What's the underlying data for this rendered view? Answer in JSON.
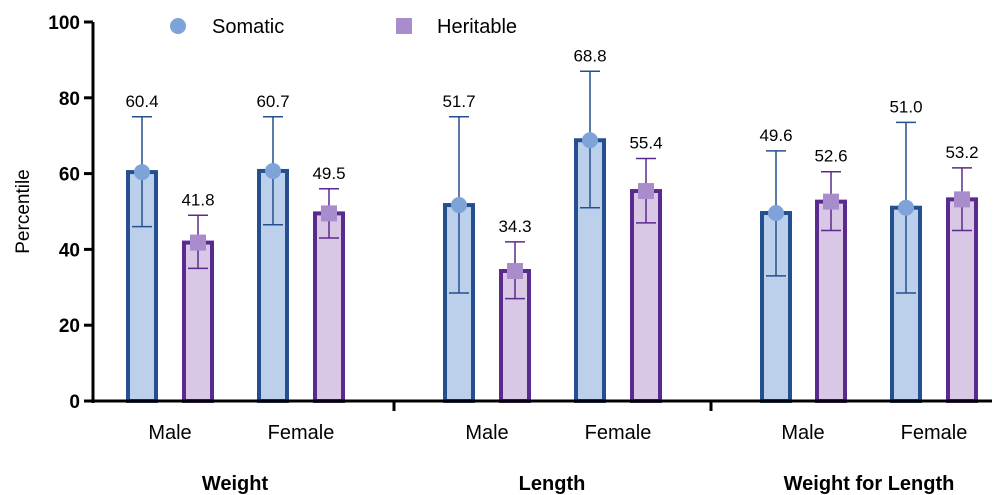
{
  "chart_data": {
    "type": "bar",
    "ylabel": "Percentile",
    "xlabel": "",
    "ylim": [
      0,
      100
    ],
    "yticks": [
      0,
      20,
      40,
      60,
      80,
      100
    ],
    "grid": false,
    "legend_position": "top-left",
    "groups": [
      "Weight",
      "Length",
      "Weight for Length"
    ],
    "categories": [
      "Male",
      "Female",
      "Male",
      "Female",
      "Male",
      "Female"
    ],
    "category_group": [
      0,
      0,
      1,
      1,
      2,
      2
    ],
    "series": [
      {
        "name": "Somatic",
        "marker": "circle",
        "fill_color": "#bcd0ec",
        "edge_color": "#24508f",
        "marker_color": "#7ea3d8",
        "values": [
          60.4,
          60.7,
          51.7,
          68.8,
          49.6,
          51.0
        ],
        "labels": [
          "60.4",
          "60.7",
          "51.7",
          "68.8",
          "49.6",
          "51.0"
        ],
        "error_low": [
          46.0,
          46.5,
          28.5,
          51.0,
          33.0,
          28.5
        ],
        "error_high": [
          75.0,
          75.0,
          75.0,
          87.0,
          66.0,
          73.5
        ]
      },
      {
        "name": "Heritable",
        "marker": "square",
        "fill_color": "#d8c8e6",
        "edge_color": "#5a2a8e",
        "marker_color": "#a88ccb",
        "values": [
          41.8,
          49.5,
          34.3,
          55.4,
          52.6,
          53.2
        ],
        "labels": [
          "41.8",
          "49.5",
          "34.3",
          "55.4",
          "52.6",
          "53.2"
        ],
        "error_low": [
          35.0,
          43.0,
          27.0,
          47.0,
          45.0,
          45.0
        ],
        "error_high": [
          49.0,
          56.0,
          42.0,
          64.0,
          60.5,
          61.5
        ]
      }
    ]
  }
}
